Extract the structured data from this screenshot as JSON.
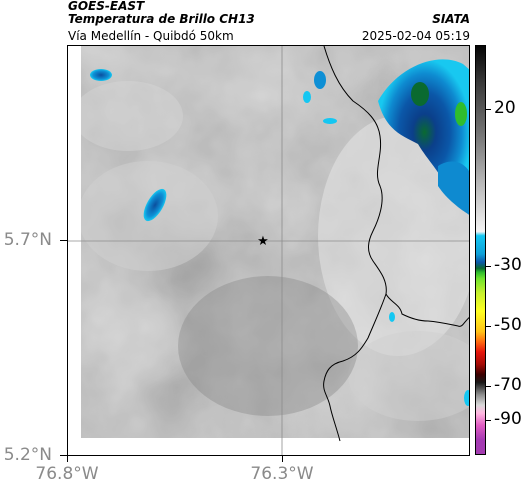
{
  "header": {
    "satellite": "GOES-EAST",
    "product": "Temperatura de Brillo CH13",
    "subtitle": "Vía Medellín - Quibdó 50km",
    "organization": "SIATA",
    "datetime": "2025-02-04 05:19"
  },
  "axes": {
    "y_ticks": [
      "5.7°N",
      "5.2°N"
    ],
    "x_ticks": [
      "76.8°W",
      "76.3°W"
    ]
  },
  "colorbar": {
    "labels": [
      "20",
      "-30",
      "-50",
      "-70",
      "-90"
    ],
    "colors": {
      "coldest": "#0b57a8",
      "cyan": "#15c7f2",
      "green": "#2fbd2d",
      "yellow": "#ffff22",
      "red": "#e5150c",
      "magenta": "#a53ab3"
    }
  },
  "map": {
    "marker": "star-marker",
    "gridline_color": "#8c8c8c",
    "border_color": "#000000"
  }
}
